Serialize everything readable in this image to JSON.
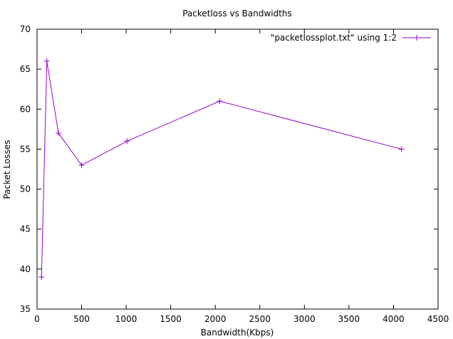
{
  "chart_data": {
    "type": "line",
    "title": "Packetloss vs Bandwidths",
    "xlabel": "Bandwidth(Kbps)",
    "ylabel": "Packet Losses",
    "xlim": [
      0,
      4500
    ],
    "ylim": [
      35,
      70
    ],
    "xticks": [
      0,
      500,
      1000,
      1500,
      2000,
      2500,
      3000,
      3500,
      4000,
      4500
    ],
    "yticks": [
      35,
      40,
      45,
      50,
      55,
      60,
      65,
      70
    ],
    "grid": false,
    "legend_position": "top-right",
    "series": [
      {
        "name": "\"packetlossplot.txt\" using 1:2",
        "color": "#9400d3",
        "marker": "plus",
        "x": [
          50,
          110,
          240,
          500,
          1010,
          2050,
          4090
        ],
        "y": [
          39,
          66,
          57,
          53,
          56,
          61,
          55
        ]
      }
    ]
  }
}
